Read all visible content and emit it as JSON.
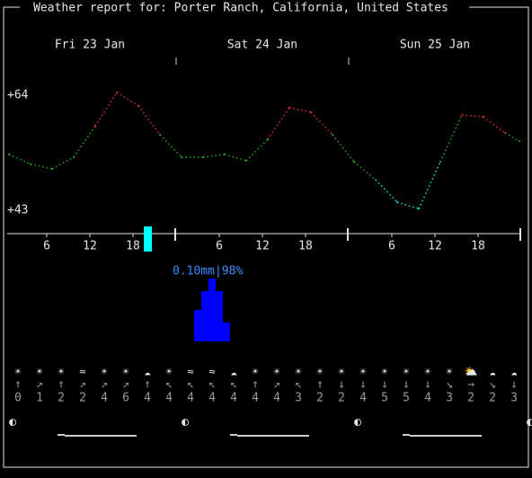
{
  "header": {
    "title": "Weather report for: Porter Ranch, California, United States"
  },
  "days": [
    "Fri 23 Jan",
    "Sat 24 Jan",
    "Sun 25 Jan"
  ],
  "temperature": {
    "ylim": [
      43,
      64
    ],
    "yticks": [
      {
        "value": 64,
        "label": "+64"
      },
      {
        "value": 43,
        "label": "+43"
      }
    ],
    "values": [
      53.3,
      51.6,
      50.8,
      52.8,
      58.2,
      64,
      61.7,
      56.7,
      52.8,
      52.8,
      53.3,
      52.2,
      55.9,
      61.4,
      60.6,
      56.7,
      52,
      48.9,
      45,
      43.9,
      52,
      60.1,
      59.8,
      57,
      55.6
    ]
  },
  "hours": [
    6,
    12,
    18
  ],
  "precipitation": {
    "label": "0.10mm|98%",
    "ylim": [
      0,
      0.1
    ],
    "values": [
      0.05,
      0.08,
      0.1,
      0.08,
      0.03
    ]
  },
  "icons": [
    "☀",
    "☀",
    "☀",
    "≈",
    "☀",
    "☀",
    "☁",
    "☀",
    "≈",
    "≈",
    "☁",
    "☀",
    "☀",
    "☀",
    "☀",
    "☀",
    "☀",
    "☀",
    "☀",
    "☀",
    "☀",
    "⛅",
    "☁",
    "☁"
  ],
  "wind_dirs": [
    "↑",
    "↗",
    "↑",
    "↗",
    "↗",
    "↗",
    "↑",
    "↖",
    "↖",
    "↖",
    "↖",
    "↑",
    "↗",
    "↖",
    "↑",
    "↓",
    "↓",
    "↓",
    "↓",
    "↓",
    "↘",
    "→",
    "↘",
    "↓"
  ],
  "wind_speeds": [
    0,
    1,
    2,
    2,
    4,
    6,
    4,
    4,
    4,
    4,
    4,
    4,
    4,
    3,
    2,
    2,
    4,
    5,
    5,
    4,
    3,
    2,
    2,
    3
  ],
  "moon": [
    "◐",
    "◐",
    "◐",
    "◐"
  ]
}
